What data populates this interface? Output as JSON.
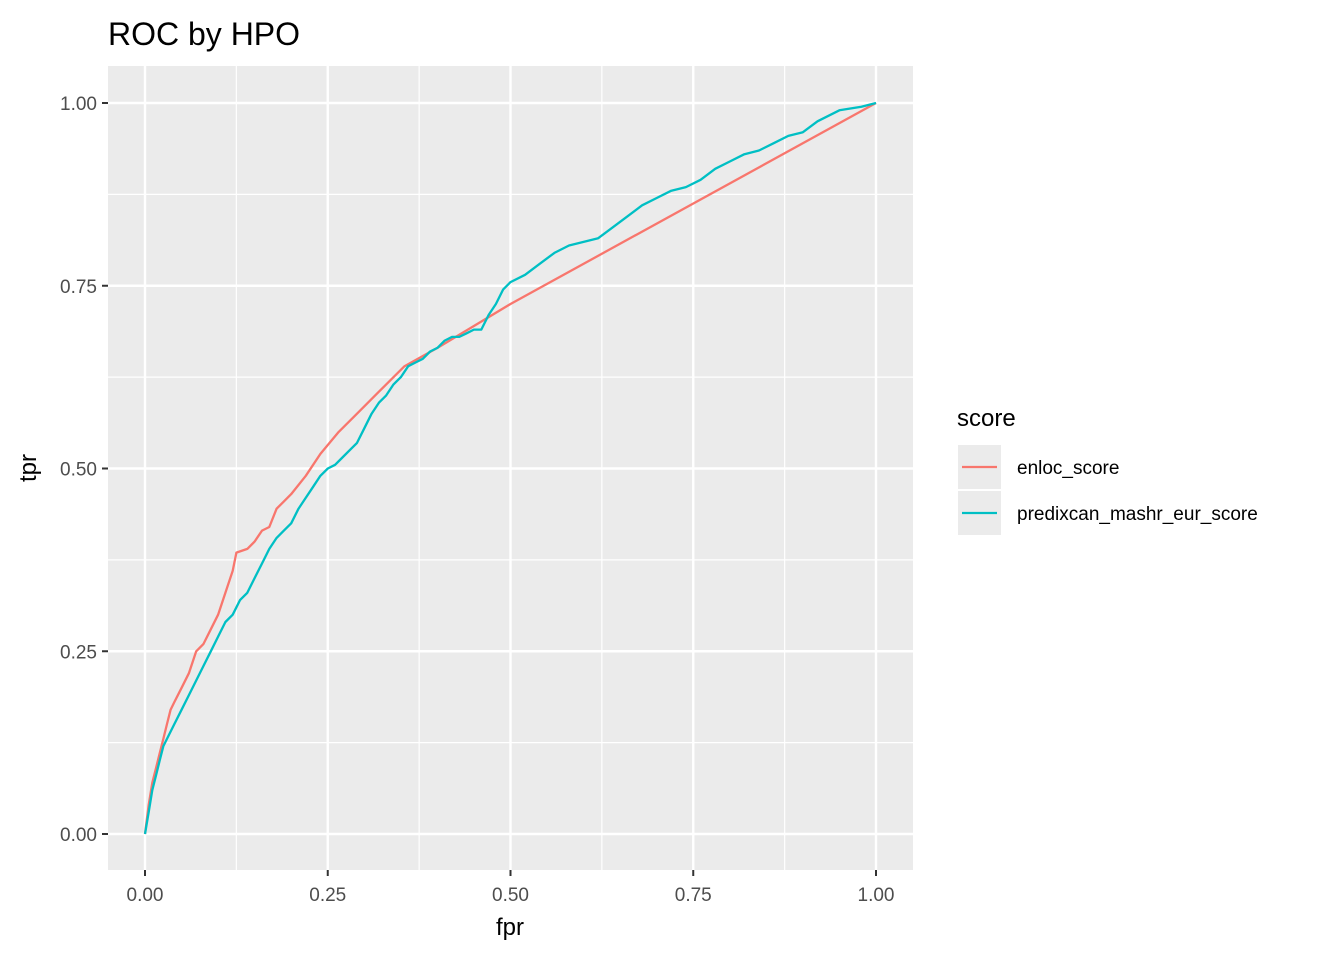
{
  "chart_data": {
    "type": "line",
    "title": "ROC by HPO",
    "xlabel": "fpr",
    "ylabel": "tpr",
    "xlim": [
      0,
      1
    ],
    "ylim": [
      0,
      1
    ],
    "x_ticks": [
      "0.00",
      "0.25",
      "0.50",
      "0.75",
      "1.00"
    ],
    "y_ticks": [
      "0.00",
      "0.25",
      "0.50",
      "0.75",
      "1.00"
    ],
    "grid": true,
    "legend": {
      "title": "score",
      "position": "right"
    },
    "series": [
      {
        "name": "enloc_score",
        "color": "#F8766D",
        "x": [
          0.0,
          0.005,
          0.01,
          0.015,
          0.02,
          0.025,
          0.03,
          0.035,
          0.04,
          0.05,
          0.06,
          0.07,
          0.08,
          0.09,
          0.1,
          0.11,
          0.12,
          0.125,
          0.14,
          0.15,
          0.16,
          0.17,
          0.18,
          0.19,
          0.2,
          0.22,
          0.24,
          0.265,
          0.29,
          0.32,
          0.355,
          0.4,
          0.45,
          0.5,
          1.0
        ],
        "y": [
          0.0,
          0.04,
          0.07,
          0.09,
          0.11,
          0.13,
          0.15,
          0.17,
          0.18,
          0.2,
          0.22,
          0.25,
          0.26,
          0.28,
          0.3,
          0.33,
          0.36,
          0.385,
          0.39,
          0.4,
          0.415,
          0.42,
          0.445,
          0.455,
          0.465,
          0.49,
          0.52,
          0.55,
          0.575,
          0.605,
          0.64,
          0.665,
          0.695,
          0.725,
          1.0
        ]
      },
      {
        "name": "predixcan_mashr_eur_score",
        "color": "#00BFC4",
        "x": [
          0.0,
          0.005,
          0.01,
          0.015,
          0.02,
          0.025,
          0.03,
          0.04,
          0.05,
          0.06,
          0.07,
          0.08,
          0.09,
          0.1,
          0.11,
          0.12,
          0.13,
          0.14,
          0.15,
          0.16,
          0.17,
          0.18,
          0.19,
          0.2,
          0.21,
          0.22,
          0.23,
          0.24,
          0.25,
          0.26,
          0.27,
          0.28,
          0.29,
          0.3,
          0.31,
          0.32,
          0.33,
          0.34,
          0.35,
          0.36,
          0.37,
          0.38,
          0.39,
          0.4,
          0.41,
          0.42,
          0.43,
          0.44,
          0.45,
          0.46,
          0.47,
          0.48,
          0.49,
          0.5,
          0.52,
          0.54,
          0.56,
          0.58,
          0.6,
          0.62,
          0.64,
          0.66,
          0.68,
          0.7,
          0.72,
          0.74,
          0.76,
          0.78,
          0.8,
          0.82,
          0.84,
          0.86,
          0.88,
          0.9,
          0.92,
          0.95,
          0.98,
          1.0
        ],
        "y": [
          0.0,
          0.03,
          0.06,
          0.08,
          0.1,
          0.12,
          0.13,
          0.15,
          0.17,
          0.19,
          0.21,
          0.23,
          0.25,
          0.27,
          0.29,
          0.3,
          0.32,
          0.33,
          0.35,
          0.37,
          0.39,
          0.405,
          0.415,
          0.425,
          0.445,
          0.46,
          0.475,
          0.49,
          0.5,
          0.505,
          0.515,
          0.525,
          0.535,
          0.555,
          0.575,
          0.59,
          0.6,
          0.615,
          0.625,
          0.64,
          0.645,
          0.65,
          0.66,
          0.665,
          0.675,
          0.68,
          0.68,
          0.685,
          0.69,
          0.69,
          0.71,
          0.725,
          0.745,
          0.755,
          0.765,
          0.78,
          0.795,
          0.805,
          0.81,
          0.815,
          0.83,
          0.845,
          0.86,
          0.87,
          0.88,
          0.885,
          0.895,
          0.91,
          0.92,
          0.93,
          0.935,
          0.945,
          0.955,
          0.96,
          0.975,
          0.99,
          0.995,
          1.0
        ]
      }
    ]
  }
}
